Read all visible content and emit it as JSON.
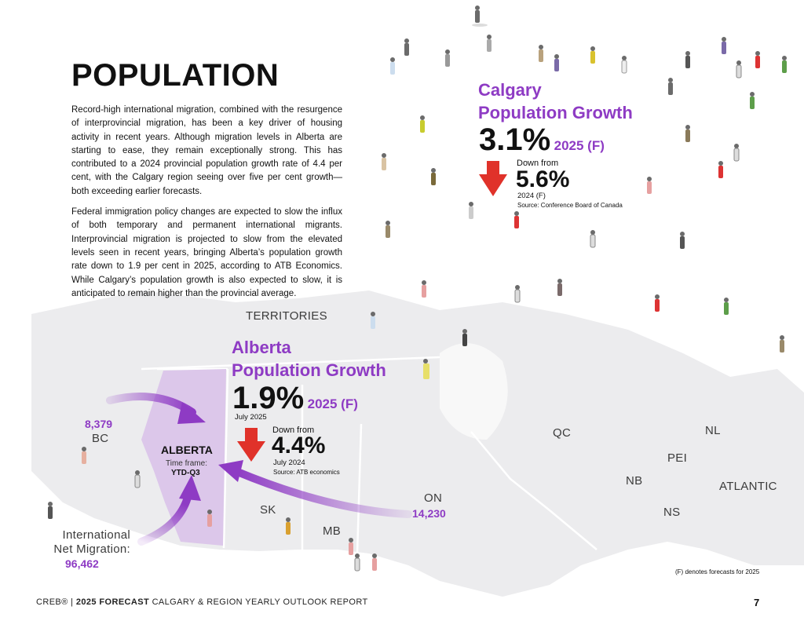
{
  "page": {
    "title": "POPULATION",
    "paragraphs": [
      "Record-high international migration, combined with the resurgence of interprovincial migration, has been a key driver of housing activity in recent years. Although migration levels in Alberta are starting to ease, they remain exceptionally strong. This has contributed to a 2024 provincial population growth rate of 4.4 per cent, with the Calgary region seeing over five per cent growth—both exceeding earlier forecasts.",
      "Federal immigration policy changes are expected to slow the influx of both temporary and permanent international migrants. Interprovincial migration is projected to slow from the elevated levels seen in recent years, bringing Alberta’s population growth rate down to 1.9 per cent in 2025, according to ATB Economics. While Calgary’s population growth is also expected to slow, it is anticipated to remain higher than the provincial average."
    ]
  },
  "calgary": {
    "headline_line1": "Calgary",
    "headline_line2": "Population Growth",
    "value": "3.1%",
    "forecast": "2025 (F)",
    "down_from_label": "Down from",
    "previous_value": "5.6%",
    "previous_period": "2024 (F)",
    "source": "Source: Conference Board of Canada"
  },
  "alberta": {
    "headline_line1": "Alberta",
    "headline_line2": "Population Growth",
    "value": "1.9%",
    "forecast": "2025 (F)",
    "value_period": "July 2025",
    "down_from_label": "Down from",
    "previous_value": "4.4%",
    "previous_period": "July 2024",
    "source": "Source: ATB economics"
  },
  "map": {
    "territories": "TERRITORIES",
    "bc": "BC",
    "bc_value": "8,379",
    "alberta_label": "ALBERTA",
    "timeframe_label": "Time frame:",
    "timeframe_value": "YTD-Q3",
    "sk": "SK",
    "mb": "MB",
    "on": "ON",
    "on_value": "14,230",
    "qc": "QC",
    "nl": "NL",
    "pei": "PEI",
    "nb": "NB",
    "ns": "NS",
    "atlantic": "ATLANTIC",
    "intl_line1": "International",
    "intl_line2": "Net Migration:",
    "intl_value": "96,462",
    "forecast_note": "(F) denotes forecasts for 2025"
  },
  "footer": {
    "brand": "CREB®",
    "separator": "|",
    "bold_text": "2025 FORECAST",
    "text": "CALGARY & REGION YEARLY OUTLOOK REPORT",
    "page_number": "7"
  },
  "colors": {
    "accent_purple": "#8e3bc4",
    "down_arrow_red": "#e0322a",
    "map_gray": "#e9e9eb",
    "alberta_fill": "#dcc7ea"
  }
}
